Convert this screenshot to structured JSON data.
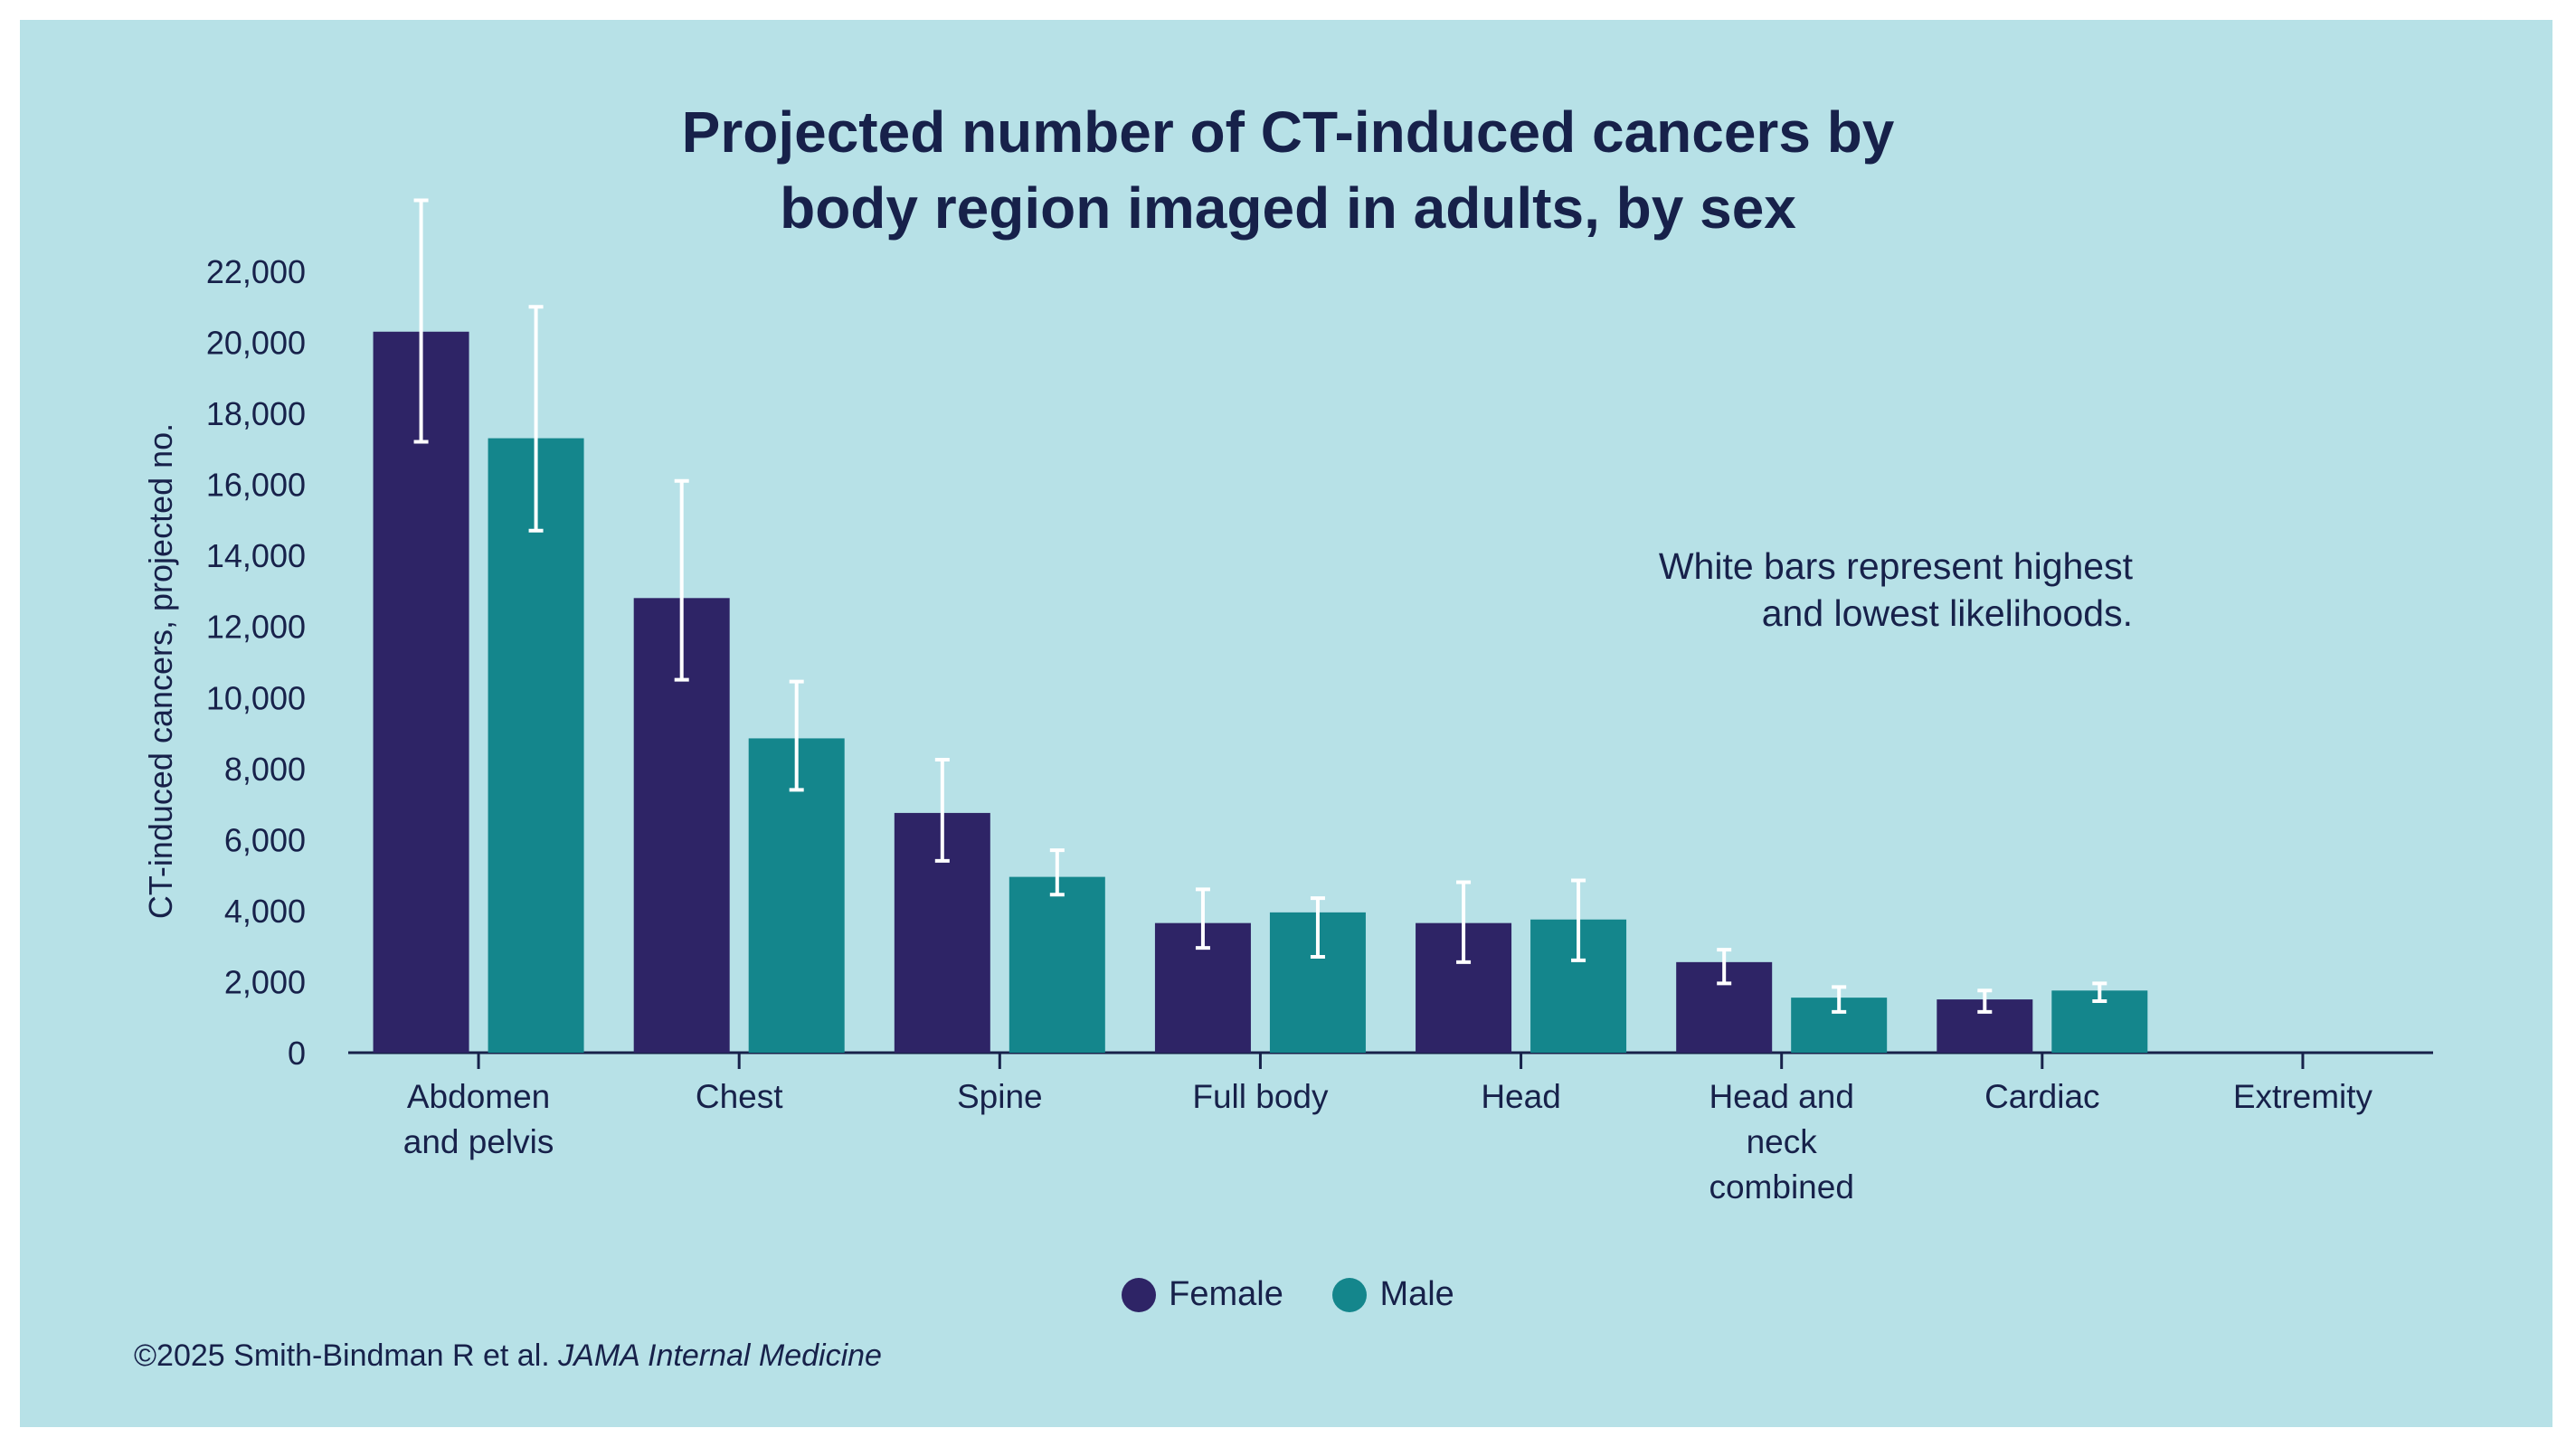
{
  "chart_data": {
    "type": "bar",
    "title_lines": [
      "Projected number of CT-induced cancers by",
      "body region imaged in adults, by sex"
    ],
    "ylabel": "CT-induced cancers, projected no.",
    "xlabel": "",
    "ylim": [
      0,
      22000
    ],
    "yticks": [
      0,
      2000,
      4000,
      6000,
      8000,
      10000,
      12000,
      14000,
      16000,
      18000,
      20000,
      22000
    ],
    "ytick_labels": [
      "0",
      "2,000",
      "4,000",
      "6,000",
      "8,000",
      "10,000",
      "12,000",
      "14,000",
      "16,000",
      "18,000",
      "20,000",
      "22,000"
    ],
    "categories": [
      [
        "Abdomen",
        "and pelvis"
      ],
      [
        "Chest"
      ],
      [
        "Spine"
      ],
      [
        "Full body"
      ],
      [
        "Head"
      ],
      [
        "Head and",
        "neck",
        "combined"
      ],
      [
        "Cardiac"
      ],
      [
        "Extremity"
      ]
    ],
    "series": [
      {
        "name": "Female",
        "color": "#2e2466",
        "values": [
          20300,
          12800,
          6750,
          3650,
          3650,
          2550,
          1500,
          0
        ],
        "low": [
          17200,
          10500,
          5400,
          2950,
          2550,
          1950,
          1150,
          0
        ],
        "high": [
          24000,
          16100,
          8250,
          4600,
          4800,
          2900,
          1750,
          0
        ]
      },
      {
        "name": "Male",
        "color": "#14868c",
        "values": [
          17300,
          8850,
          4950,
          3950,
          3750,
          1550,
          1750,
          0
        ],
        "low": [
          14700,
          7400,
          4450,
          2700,
          2600,
          1150,
          1450,
          0
        ],
        "high": [
          21000,
          10450,
          5700,
          4350,
          4850,
          1850,
          1950,
          0
        ]
      }
    ],
    "grid": false,
    "legend_position": "bottom-center",
    "annotation_lines": [
      "White bars represent highest",
      "and lowest likelihoods."
    ],
    "errorbar_color": "#ffffff"
  },
  "credit": {
    "text": "©2025 Smith-Bindman R et al.",
    "journal": "JAMA Internal Medicine"
  },
  "colors": {
    "background": "#b7e1e7",
    "text": "#17214a",
    "axis": "#17214a"
  }
}
